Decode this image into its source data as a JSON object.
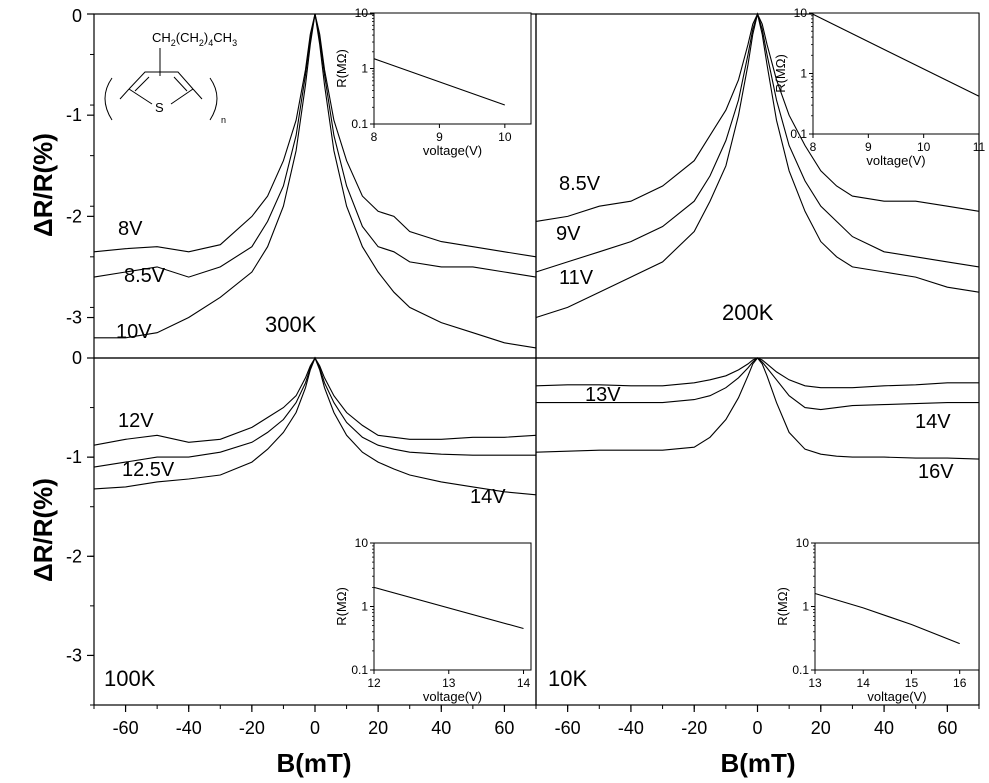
{
  "figure": {
    "ylabel": "ΔR/R(%)",
    "xlabel": "B(mT)",
    "molecule": {
      "side_chain_parts": [
        "CH",
        "2",
        "(CH",
        "2",
        ")",
        "4",
        "CH",
        "3"
      ],
      "ring_atom": "S",
      "repeat": "n"
    }
  },
  "chart_data": [
    {
      "type": "line",
      "panel": "top-left",
      "panel_label": "300K",
      "xlim": [
        -70,
        70
      ],
      "ylim": [
        -3.4,
        0
      ],
      "xticks": [
        -60,
        -40,
        -20,
        0,
        20,
        40,
        60
      ],
      "yticks": [
        0,
        -1,
        -2,
        -3
      ],
      "series": [
        {
          "name": "8V",
          "x": [
            -70,
            -60,
            -50,
            -40,
            -30,
            -20,
            -15,
            -10,
            -6,
            -3,
            -1.5,
            0,
            1.5,
            3,
            6,
            10,
            15,
            20,
            25,
            30,
            40,
            50,
            60,
            70
          ],
          "y": [
            -2.35,
            -2.32,
            -2.3,
            -2.35,
            -2.28,
            -2.0,
            -1.8,
            -1.45,
            -1.05,
            -0.55,
            -0.2,
            0,
            -0.2,
            -0.55,
            -1.05,
            -1.45,
            -1.8,
            -1.95,
            -2.0,
            -2.15,
            -2.25,
            -2.3,
            -2.35,
            -2.4
          ]
        },
        {
          "name": "8.5V",
          "x": [
            -70,
            -60,
            -50,
            -40,
            -30,
            -20,
            -15,
            -10,
            -6,
            -3,
            -1.5,
            0,
            1.5,
            3,
            6,
            10,
            15,
            20,
            25,
            30,
            40,
            50,
            60,
            70
          ],
          "y": [
            -2.6,
            -2.55,
            -2.5,
            -2.6,
            -2.5,
            -2.3,
            -2.05,
            -1.7,
            -1.2,
            -0.6,
            -0.25,
            0,
            -0.25,
            -0.6,
            -1.2,
            -1.7,
            -2.1,
            -2.3,
            -2.35,
            -2.45,
            -2.5,
            -2.5,
            -2.55,
            -2.6
          ]
        },
        {
          "name": "10V",
          "x": [
            -70,
            -60,
            -50,
            -40,
            -30,
            -20,
            -15,
            -10,
            -6,
            -3,
            -1.5,
            0,
            1.5,
            3,
            6,
            10,
            15,
            20,
            25,
            30,
            40,
            50,
            60,
            70
          ],
          "y": [
            -3.2,
            -3.2,
            -3.15,
            -3.0,
            -2.8,
            -2.55,
            -2.3,
            -1.9,
            -1.35,
            -0.7,
            -0.3,
            0,
            -0.3,
            -0.7,
            -1.35,
            -1.9,
            -2.3,
            -2.55,
            -2.75,
            -2.9,
            -3.05,
            -3.15,
            -3.25,
            -3.3
          ]
        }
      ],
      "inset": {
        "xlabel": "voltage(V)",
        "ylabel": "R(MΩ)",
        "yscale": "log",
        "xlim": [
          8,
          10.4
        ],
        "ylim": [
          0.1,
          10
        ],
        "xticks": [
          8,
          9,
          10
        ],
        "yticks": [
          0.1,
          1,
          10
        ],
        "x": [
          8,
          10
        ],
        "y": [
          1.5,
          0.22
        ]
      }
    },
    {
      "type": "line",
      "panel": "top-right",
      "panel_label": "200K",
      "xlim": [
        -70,
        70
      ],
      "ylim": [
        -3.4,
        0
      ],
      "xticks": [
        -60,
        -40,
        -20,
        0,
        20,
        40,
        60
      ],
      "yticks": [
        0,
        -1,
        -2,
        -3
      ],
      "series": [
        {
          "name": "8.5V",
          "x": [
            -70,
            -60,
            -50,
            -40,
            -30,
            -20,
            -15,
            -10,
            -6,
            -3,
            -1.5,
            0,
            1.5,
            3,
            6,
            10,
            15,
            20,
            25,
            30,
            40,
            50,
            60,
            70
          ],
          "y": [
            -2.05,
            -2.0,
            -1.9,
            -1.85,
            -1.7,
            -1.45,
            -1.2,
            -0.95,
            -0.65,
            -0.3,
            -0.1,
            0,
            -0.1,
            -0.3,
            -0.65,
            -1.0,
            -1.3,
            -1.55,
            -1.7,
            -1.8,
            -1.85,
            -1.85,
            -1.9,
            -1.95
          ]
        },
        {
          "name": "9V",
          "x": [
            -70,
            -60,
            -50,
            -40,
            -30,
            -20,
            -15,
            -10,
            -6,
            -3,
            -1.5,
            0,
            1.5,
            3,
            6,
            10,
            15,
            20,
            25,
            30,
            40,
            50,
            60,
            70
          ],
          "y": [
            -2.55,
            -2.45,
            -2.35,
            -2.25,
            -2.1,
            -1.85,
            -1.6,
            -1.25,
            -0.85,
            -0.4,
            -0.15,
            0,
            -0.15,
            -0.4,
            -0.85,
            -1.3,
            -1.65,
            -1.9,
            -2.05,
            -2.2,
            -2.35,
            -2.4,
            -2.45,
            -2.5
          ]
        },
        {
          "name": "11V",
          "x": [
            -70,
            -60,
            -50,
            -40,
            -30,
            -20,
            -15,
            -10,
            -6,
            -3,
            -1.5,
            0,
            1.5,
            3,
            6,
            10,
            15,
            20,
            25,
            30,
            40,
            50,
            60,
            70
          ],
          "y": [
            -3.0,
            -2.9,
            -2.75,
            -2.6,
            -2.45,
            -2.15,
            -1.85,
            -1.5,
            -1.0,
            -0.5,
            -0.2,
            0,
            -0.2,
            -0.5,
            -1.05,
            -1.55,
            -1.95,
            -2.25,
            -2.4,
            -2.5,
            -2.55,
            -2.6,
            -2.7,
            -2.75
          ]
        }
      ],
      "inset": {
        "xlabel": "voltage(V)",
        "ylabel": "R(MΩ)",
        "yscale": "log",
        "xlim": [
          8,
          11
        ],
        "ylim": [
          0.1,
          10
        ],
        "xticks": [
          8,
          9,
          10,
          11
        ],
        "yticks": [
          0.1,
          1,
          10
        ],
        "x": [
          8,
          11
        ],
        "y": [
          9.5,
          0.42
        ]
      }
    },
    {
      "type": "line",
      "panel": "bottom-left",
      "panel_label": "100K",
      "xlim": [
        -70,
        70
      ],
      "ylim": [
        -3.5,
        0
      ],
      "xticks": [
        -60,
        -40,
        -20,
        0,
        20,
        40,
        60
      ],
      "yticks": [
        0,
        -1,
        -2,
        -3
      ],
      "series": [
        {
          "name": "12V",
          "x": [
            -70,
            -60,
            -50,
            -40,
            -30,
            -20,
            -15,
            -10,
            -6,
            -3,
            -1.5,
            0,
            1.5,
            3,
            6,
            10,
            15,
            20,
            25,
            30,
            40,
            50,
            60,
            70
          ],
          "y": [
            -0.88,
            -0.82,
            -0.78,
            -0.85,
            -0.82,
            -0.7,
            -0.6,
            -0.5,
            -0.38,
            -0.2,
            -0.08,
            0,
            -0.08,
            -0.2,
            -0.38,
            -0.55,
            -0.68,
            -0.78,
            -0.8,
            -0.82,
            -0.82,
            -0.8,
            -0.8,
            -0.78
          ]
        },
        {
          "name": "12.5V",
          "x": [
            -70,
            -60,
            -50,
            -40,
            -30,
            -20,
            -15,
            -10,
            -6,
            -3,
            -1.5,
            0,
            1.5,
            3,
            6,
            10,
            15,
            20,
            25,
            30,
            40,
            50,
            60,
            70
          ],
          "y": [
            -1.1,
            -1.05,
            -1.0,
            -1.0,
            -0.95,
            -0.85,
            -0.75,
            -0.62,
            -0.45,
            -0.25,
            -0.1,
            0,
            -0.1,
            -0.25,
            -0.45,
            -0.65,
            -0.8,
            -0.88,
            -0.92,
            -0.95,
            -0.97,
            -0.98,
            -0.98,
            -0.98
          ]
        },
        {
          "name": "14V",
          "x": [
            -70,
            -60,
            -50,
            -40,
            -30,
            -20,
            -15,
            -10,
            -6,
            -3,
            -1.5,
            0,
            1.5,
            3,
            6,
            10,
            15,
            20,
            25,
            30,
            40,
            50,
            60,
            70
          ],
          "y": [
            -1.32,
            -1.3,
            -1.25,
            -1.22,
            -1.18,
            -1.05,
            -0.92,
            -0.75,
            -0.55,
            -0.3,
            -0.12,
            0,
            -0.12,
            -0.3,
            -0.55,
            -0.78,
            -0.95,
            -1.05,
            -1.12,
            -1.18,
            -1.25,
            -1.3,
            -1.35,
            -1.38
          ]
        }
      ],
      "inset": {
        "xlabel": "voltage(V)",
        "ylabel": "R(MΩ)",
        "yscale": "log",
        "xlim": [
          12,
          14.1
        ],
        "ylim": [
          0.1,
          10
        ],
        "xticks": [
          12,
          13,
          14
        ],
        "yticks": [
          0.1,
          1,
          10
        ],
        "x": [
          12,
          14
        ],
        "y": [
          2.0,
          0.45
        ]
      }
    },
    {
      "type": "line",
      "panel": "bottom-right",
      "panel_label": "10K",
      "xlim": [
        -70,
        70
      ],
      "ylim": [
        -3.5,
        0
      ],
      "xticks": [
        -60,
        -40,
        -20,
        0,
        20,
        40,
        60
      ],
      "yticks": [
        0,
        -1,
        -2,
        -3
      ],
      "series": [
        {
          "name": "13V",
          "x": [
            -70,
            -60,
            -50,
            -40,
            -30,
            -20,
            -15,
            -10,
            -6,
            -3,
            -1.5,
            0,
            1.5,
            3,
            6,
            10,
            15,
            20,
            25,
            30,
            40,
            50,
            60,
            70
          ],
          "y": [
            -0.28,
            -0.27,
            -0.27,
            -0.28,
            -0.28,
            -0.25,
            -0.22,
            -0.18,
            -0.12,
            -0.06,
            -0.02,
            0,
            -0.02,
            -0.06,
            -0.14,
            -0.22,
            -0.28,
            -0.3,
            -0.3,
            -0.3,
            -0.28,
            -0.27,
            -0.25,
            -0.25
          ]
        },
        {
          "name": "14V",
          "x": [
            -70,
            -60,
            -50,
            -40,
            -30,
            -20,
            -15,
            -10,
            -6,
            -3,
            -1.5,
            0,
            1.5,
            3,
            6,
            10,
            15,
            20,
            25,
            30,
            40,
            50,
            60,
            70
          ],
          "y": [
            -0.45,
            -0.45,
            -0.45,
            -0.45,
            -0.45,
            -0.42,
            -0.38,
            -0.3,
            -0.2,
            -0.1,
            -0.04,
            0,
            -0.04,
            -0.1,
            -0.22,
            -0.38,
            -0.5,
            -0.52,
            -0.5,
            -0.48,
            -0.47,
            -0.46,
            -0.45,
            -0.45
          ]
        },
        {
          "name": "16V",
          "x": [
            -70,
            -60,
            -50,
            -40,
            -30,
            -20,
            -15,
            -10,
            -6,
            -3,
            -1.5,
            0,
            1.5,
            3,
            6,
            10,
            15,
            20,
            25,
            30,
            40,
            50,
            60,
            70
          ],
          "y": [
            -0.95,
            -0.94,
            -0.93,
            -0.93,
            -0.93,
            -0.9,
            -0.8,
            -0.62,
            -0.4,
            -0.18,
            -0.06,
            0,
            -0.06,
            -0.18,
            -0.45,
            -0.75,
            -0.92,
            -0.97,
            -0.99,
            -1.0,
            -1.0,
            -1.01,
            -1.01,
            -1.02
          ]
        }
      ],
      "inset": {
        "xlabel": "voltage(V)",
        "ylabel": "R(MΩ)",
        "yscale": "log",
        "xlim": [
          13,
          16.4
        ],
        "ylim": [
          0.1,
          10
        ],
        "xticks": [
          13,
          14,
          15,
          16
        ],
        "yticks": [
          0.1,
          1,
          10
        ],
        "x": [
          13,
          14,
          15,
          16
        ],
        "y": [
          1.6,
          0.95,
          0.52,
          0.26
        ]
      }
    }
  ]
}
